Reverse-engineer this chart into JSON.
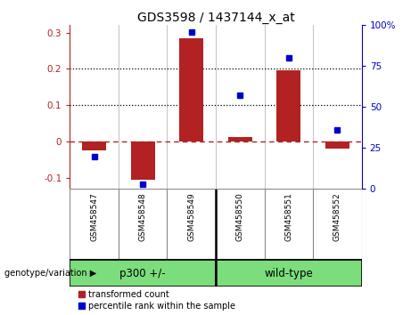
{
  "title": "GDS3598 / 1437144_x_at",
  "samples": [
    "GSM458547",
    "GSM458548",
    "GSM458549",
    "GSM458550",
    "GSM458551",
    "GSM458552"
  ],
  "bar_values": [
    -0.025,
    -0.105,
    0.285,
    0.013,
    0.197,
    -0.018
  ],
  "dot_percentiles": [
    20,
    3,
    96,
    57,
    80,
    36
  ],
  "ylim_left": [
    -0.13,
    0.32
  ],
  "ylim_right": [
    0,
    100
  ],
  "right_ticks": [
    0,
    25,
    50,
    75,
    100
  ],
  "right_ticklabels": [
    "0",
    "25",
    "50",
    "75",
    "100%"
  ],
  "left_ticks": [
    -0.1,
    0.0,
    0.1,
    0.2,
    0.3
  ],
  "left_ticklabels": [
    "-0.1",
    "0",
    "0.1",
    "0.2",
    "0.3"
  ],
  "bar_color": "#b22222",
  "dot_color": "#0000cd",
  "zero_line_color": "#b22222",
  "grid_color": "#000000",
  "group1_label": "p300 +/-",
  "group2_label": "wild-type",
  "group_color": "#7cdd7c",
  "genotype_label": "genotype/variation",
  "legend1": "transformed count",
  "legend2": "percentile rank within the sample",
  "sample_bg": "#d3d3d3",
  "plot_bg": "#ffffff",
  "gridline_dotted_at": [
    0.1,
    0.2
  ]
}
